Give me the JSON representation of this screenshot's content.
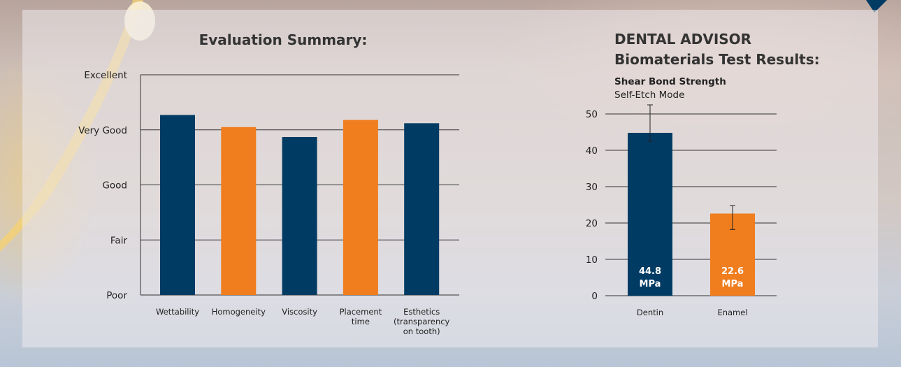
{
  "colors": {
    "navy": "#003b64",
    "orange": "#f07d1e",
    "grid": "#333333"
  },
  "left_chart": {
    "title": "Evaluation Summary:"
  },
  "right_chart": {
    "title_line1": "DENTAL ADVISOR",
    "title_line2": "Biomaterials Test Results:",
    "subtitle": "Shear Bond Strength",
    "subtitle2": "Self-Etch Mode"
  },
  "chart_data": [
    {
      "type": "bar",
      "title": "Evaluation Summary:",
      "categories": [
        [
          "Wettability"
        ],
        [
          "Homogeneity"
        ],
        [
          "Viscosity"
        ],
        [
          "Placement",
          "time"
        ],
        [
          "Esthetics",
          "(transparency",
          "on tooth)"
        ]
      ],
      "values": [
        4.27,
        4.05,
        3.87,
        4.18,
        4.12
      ],
      "y_tick_labels": [
        "Poor",
        "Fair",
        "Good",
        "Very Good",
        "Excellent"
      ],
      "ylim": [
        1,
        5
      ],
      "bar_colors": [
        "#003b64",
        "#f07d1e",
        "#003b64",
        "#f07d1e",
        "#003b64"
      ],
      "grid": true
    },
    {
      "type": "bar",
      "title": "DENTAL ADVISOR Biomaterials Test Results:",
      "subtitle": "Shear Bond Strength Self-Etch Mode",
      "categories": [
        "Dentin",
        "Enamel"
      ],
      "values": [
        44.8,
        22.6
      ],
      "error_high": [
        52.5,
        24.8
      ],
      "error_low": [
        42.5,
        18.2
      ],
      "data_labels": [
        [
          "44.8",
          "MPa"
        ],
        [
          "22.6",
          "MPa"
        ]
      ],
      "y_ticks": [
        0,
        10,
        20,
        30,
        40,
        50
      ],
      "ylim": [
        0,
        50
      ],
      "bar_colors": [
        "#003b64",
        "#f07d1e"
      ],
      "grid": true
    }
  ]
}
